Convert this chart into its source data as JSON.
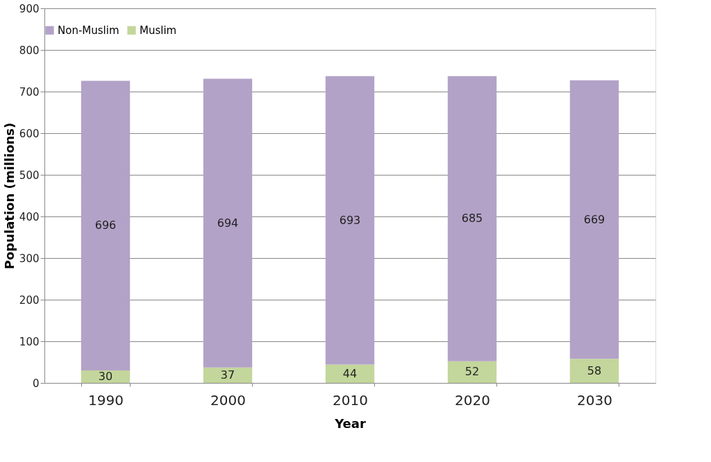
{
  "chart_data": {
    "type": "bar",
    "stacked": true,
    "xlabel": "Year",
    "ylabel": "Population (millions)",
    "categories": [
      "1990",
      "2000",
      "2010",
      "2020",
      "2030"
    ],
    "series": [
      {
        "name": "Muslim",
        "color": "#c3d69b",
        "values": [
          30,
          37,
          44,
          52,
          58
        ]
      },
      {
        "name": "Non-Muslim",
        "color": "#b3a2c7",
        "values": [
          696,
          694,
          693,
          685,
          669
        ]
      }
    ],
    "ylim": [
      0,
      900
    ],
    "yticks": [
      0,
      100,
      200,
      300,
      400,
      500,
      600,
      700,
      800,
      900
    ],
    "grid": "y",
    "legend": "top",
    "data_labels": true
  }
}
